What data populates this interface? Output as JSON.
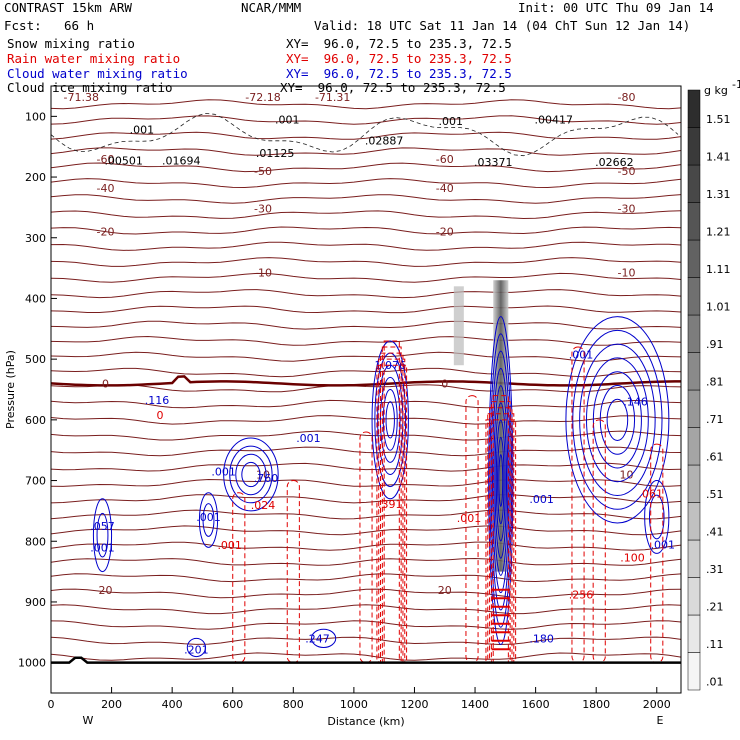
{
  "header": {
    "model": "CONTRAST 15km ARW",
    "center": "NCAR/MMM",
    "init": "Init: 00 UTC Thu 09 Jan 14",
    "fcst_label": "Fcst:",
    "fcst_value": "66 h",
    "valid": "Valid: 18 UTC Sat 11 Jan 14 (04 ChT Sun 12 Jan 14)"
  },
  "fields": [
    {
      "name": "Snow mixing ratio",
      "xy": "XY=  96.0, 72.5 to 235.3, 72.5",
      "color": "#000000"
    },
    {
      "name": "Rain water mixing ratio",
      "xy": "XY=  96.0, 72.5 to 235.3, 72.5",
      "color": "#e00000"
    },
    {
      "name": "Cloud water mixing ratio",
      "xy": "XY=  96.0, 72.5 to 235.3, 72.5",
      "color": "#0000cc"
    },
    {
      "name": "Cloud ice mixing ratio",
      "xy": "XY=  96.0, 72.5 to 235.3, 72.5",
      "color": "#000000"
    }
  ],
  "colorbar": {
    "unit": "g kg",
    "unit_exp": "-1",
    "levels": [
      ".01",
      ".11",
      ".21",
      ".31",
      ".41",
      ".51",
      ".61",
      ".71",
      ".81",
      ".91",
      "1.01",
      "1.11",
      "1.21",
      "1.31",
      "1.41",
      "1.51"
    ]
  },
  "chart_data": {
    "type": "contour cross-section",
    "xlabel": "Distance (km)",
    "ylabel": "Pressure (hPa)",
    "xlim": [
      0,
      2080
    ],
    "ylim": [
      1050,
      50
    ],
    "x_ticks": [
      "0",
      "200",
      "400",
      "600",
      "800",
      "1000",
      "1200",
      "1400",
      "1600",
      "1800",
      "2000"
    ],
    "y_ticks": [
      "100",
      "200",
      "300",
      "400",
      "500",
      "600",
      "700",
      "800",
      "900",
      "1000"
    ],
    "x_end_labels": {
      "left": "W",
      "right": "E"
    },
    "surface_pressure_hPa": 1000,
    "temperature_isotherms_C": [
      {
        "label": "-60",
        "p": 170
      },
      {
        "label": "-50",
        "p": 190
      },
      {
        "label": "-40",
        "p": 218
      },
      {
        "label": "-30",
        "p": 252
      },
      {
        "label": "-20",
        "p": 290
      },
      {
        "label": "-10",
        "p": 357
      },
      {
        "label": "0",
        "p": 540
      },
      {
        "label": "10",
        "p": 690
      },
      {
        "label": "20",
        "p": 880
      }
    ],
    "temperature_extrema": [
      {
        "label": "-71.38",
        "x": 100,
        "p": 68
      },
      {
        "label": "-72.18",
        "x": 700,
        "p": 68
      },
      {
        "label": "-71.31",
        "x": 930,
        "p": 68
      },
      {
        "label": "-80",
        "x": 1900,
        "p": 68
      }
    ],
    "cloud_ice_labels": [
      {
        "label": ".00501",
        "x": 240,
        "p": 173
      },
      {
        "label": ".01694",
        "x": 430,
        "p": 173
      },
      {
        "label": ".01125",
        "x": 740,
        "p": 160
      },
      {
        "label": ".02887",
        "x": 1100,
        "p": 140
      },
      {
        "label": ".03371",
        "x": 1460,
        "p": 175
      },
      {
        "label": ".02662",
        "x": 1860,
        "p": 175
      },
      {
        "label": ".00417",
        "x": 1660,
        "p": 105
      },
      {
        "label": ".001",
        "x": 300,
        "p": 122
      },
      {
        "label": ".001",
        "x": 780,
        "p": 105
      },
      {
        "label": ".001",
        "x": 1320,
        "p": 108
      }
    ],
    "cloud_water_labels": [
      {
        "label": ".116",
        "x": 350,
        "p": 567
      },
      {
        "label": "1.076",
        "x": 1120,
        "p": 510
      },
      {
        "label": ".760",
        "x": 710,
        "p": 696
      },
      {
        "label": ".057",
        "x": 170,
        "p": 775
      },
      {
        "label": ".201",
        "x": 480,
        "p": 978
      },
      {
        "label": ".247",
        "x": 880,
        "p": 960
      },
      {
        "label": ".180",
        "x": 1620,
        "p": 960
      },
      {
        "label": ".146",
        "x": 1930,
        "p": 570
      },
      {
        "label": ".001",
        "x": 1750,
        "p": 492
      },
      {
        "label": ".001",
        "x": 850,
        "p": 630
      },
      {
        "label": ".001",
        "x": 570,
        "p": 685
      },
      {
        "label": ".001",
        "x": 520,
        "p": 760
      },
      {
        "label": ".001",
        "x": 170,
        "p": 810
      },
      {
        "label": ".001",
        "x": 1620,
        "p": 730
      },
      {
        "label": ".001",
        "x": 2020,
        "p": 805
      }
    ],
    "rain_water_labels": [
      {
        "label": "0",
        "x": 360,
        "p": 592
      },
      {
        "label": ".024",
        "x": 700,
        "p": 740
      },
      {
        "label": ".391",
        "x": 1120,
        "p": 739
      },
      {
        "label": ".001",
        "x": 590,
        "p": 806
      },
      {
        "label": ".001",
        "x": 1380,
        "p": 762
      },
      {
        "label": ".100",
        "x": 1920,
        "p": 827
      },
      {
        "label": ".256",
        "x": 1750,
        "p": 888
      },
      {
        "label": ".061",
        "x": 1980,
        "p": 721
      }
    ],
    "precip_columns": [
      {
        "x0": 1460,
        "x1": 1510,
        "p_top": 560,
        "p_bottom": 1000
      },
      {
        "x0": 1100,
        "x1": 1150,
        "p_top": 470,
        "p_bottom": 1000
      }
    ]
  }
}
